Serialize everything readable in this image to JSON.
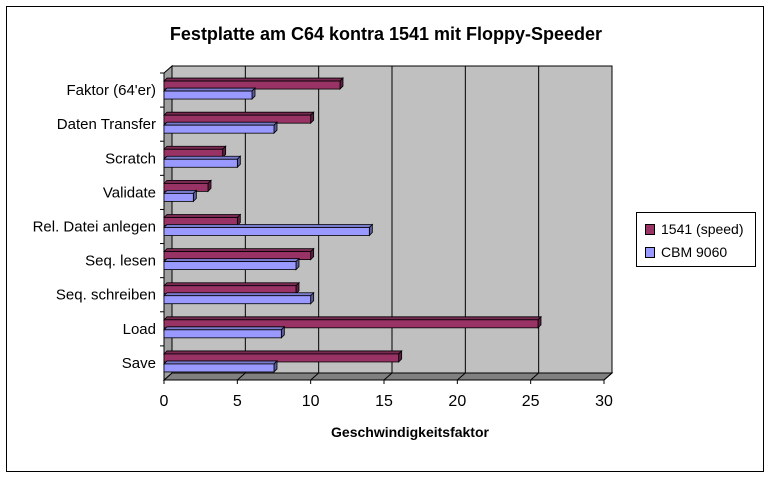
{
  "chart_data": {
    "type": "bar",
    "orientation": "horizontal",
    "title": "Festplatte am C64 kontra 1541 mit Floppy-Speeder",
    "xlabel": "Geschwindigkeitsfaktor",
    "ylabel": "",
    "xlim": [
      0,
      30
    ],
    "xticks": [
      0,
      5,
      10,
      15,
      20,
      25,
      30
    ],
    "grid": true,
    "legend_position": "right",
    "categories": [
      "Faktor (64'er)",
      "Daten Transfer",
      "Scratch",
      "Validate",
      "Rel. Datei anlegen",
      "Seq. lesen",
      "Seq. schreiben",
      "Load",
      "Save"
    ],
    "series": [
      {
        "name": "1541 (speed)",
        "color": "#993366",
        "values": [
          12,
          10,
          4,
          3,
          5,
          10,
          9,
          25.5,
          16
        ]
      },
      {
        "name": "CBM 9060",
        "color": "#9999FF",
        "values": [
          6,
          7.5,
          5,
          2,
          14,
          9,
          10,
          8,
          7.5
        ]
      }
    ]
  }
}
